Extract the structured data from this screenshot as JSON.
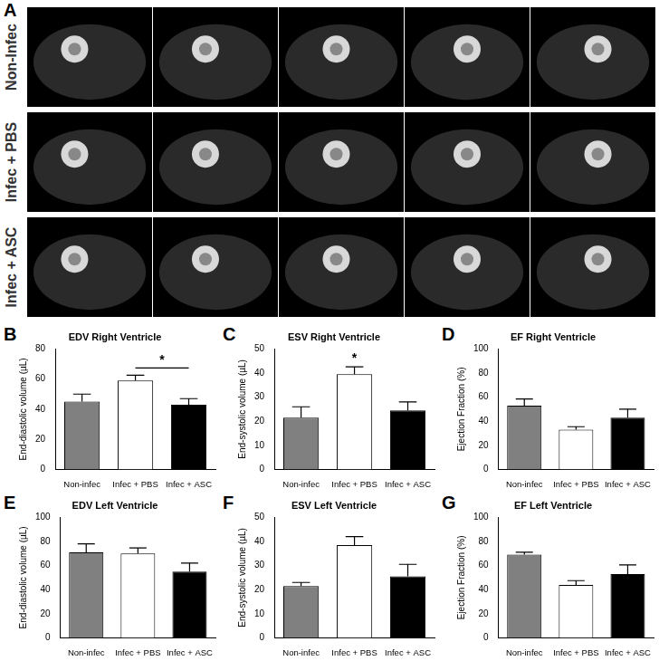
{
  "images": {
    "panel": "A",
    "rows": [
      "Non-Infec",
      "Infec + PBS",
      "Infec + ASC"
    ]
  },
  "chart_data": [
    {
      "type": "bar",
      "panel": "B",
      "title": "EDV Right Ventricle",
      "y_label": "End-diastolic volume (µL)",
      "categories": [
        "Non-infec",
        "Infec + PBS",
        "Infec + ASC"
      ],
      "values": [
        45,
        59,
        43
      ],
      "errors": [
        5,
        3.5,
        4
      ],
      "colors": [
        "#808080",
        "#ffffff",
        "#000000"
      ],
      "ylim": [
        0,
        80
      ],
      "yticks": [
        0,
        20,
        40,
        60,
        80
      ],
      "grid": false,
      "annotations": [
        {
          "text": "*",
          "between": [
            "Infec + PBS",
            "Infec + ASC"
          ]
        }
      ]
    },
    {
      "type": "bar",
      "panel": "C",
      "title": "ESV Right Ventricle",
      "y_label": "End-systolic volume (µL)",
      "categories": [
        "Non-infec",
        "Infec + PBS",
        "Infec + ASC"
      ],
      "values": [
        21.5,
        39.5,
        24.5
      ],
      "errors": [
        4.5,
        3,
        3.5
      ],
      "colors": [
        "#808080",
        "#ffffff",
        "#000000"
      ],
      "ylim": [
        0,
        50
      ],
      "yticks": [
        0,
        10,
        20,
        30,
        40,
        50
      ],
      "grid": false,
      "annotations": [
        {
          "text": "*",
          "category": "Infec + PBS"
        }
      ]
    },
    {
      "type": "bar",
      "panel": "D",
      "title": "EF Right Ventricle",
      "y_label": "Ejection Fraction (%)",
      "categories": [
        "Non-infec",
        "Infec + PBS",
        "Infec + ASC"
      ],
      "values": [
        53,
        33,
        43
      ],
      "errors": [
        5.5,
        2.5,
        7
      ],
      "colors": [
        "#808080",
        "#ffffff",
        "#000000"
      ],
      "ylim": [
        0,
        100
      ],
      "yticks": [
        0,
        20,
        40,
        60,
        80,
        100
      ],
      "grid": false
    },
    {
      "type": "bar",
      "panel": "E",
      "title": "EDV Left Ventricle",
      "y_label": "End-diastolic volume (µL)",
      "categories": [
        "Non-infec",
        "Infec + PBS",
        "Infec + ASC"
      ],
      "values": [
        71,
        70,
        55
      ],
      "errors": [
        7,
        4.5,
        7
      ],
      "colors": [
        "#808080",
        "#ffffff",
        "#000000"
      ],
      "ylim": [
        0,
        100
      ],
      "yticks": [
        0,
        20,
        40,
        60,
        80,
        100
      ],
      "grid": false
    },
    {
      "type": "bar",
      "panel": "F",
      "title": "ESV Left Ventricle",
      "y_label": "End-systolic volume (µL)",
      "categories": [
        "Non-infec",
        "Infec + PBS",
        "Infec + ASC"
      ],
      "values": [
        21.5,
        38.5,
        25.5
      ],
      "errors": [
        1.5,
        3.5,
        5
      ],
      "colors": [
        "#808080",
        "#ffffff",
        "#000000"
      ],
      "ylim": [
        0,
        50
      ],
      "yticks": [
        0,
        10,
        20,
        30,
        40,
        50
      ],
      "grid": false
    },
    {
      "type": "bar",
      "panel": "G",
      "title": "EF Left Ventricle",
      "y_label": "Ejection Fraction (%)",
      "categories": [
        "Non-infec",
        "Infec + PBS",
        "Infec + ASC"
      ],
      "values": [
        69,
        44,
        53
      ],
      "errors": [
        2,
        3.5,
        7.5
      ],
      "colors": [
        "#808080",
        "#ffffff",
        "#000000"
      ],
      "ylim": [
        0,
        100
      ],
      "yticks": [
        0,
        20,
        40,
        60,
        80,
        100
      ],
      "grid": false
    }
  ]
}
